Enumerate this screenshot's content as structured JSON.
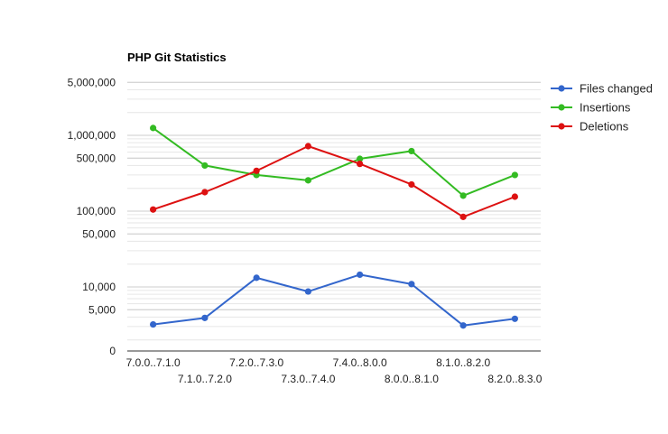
{
  "chart_data": {
    "type": "line",
    "title": "PHP Git Statistics",
    "xlabel": "",
    "ylabel": "",
    "y_scale": "log",
    "y_ticks": [
      {
        "value": 5000000,
        "label": "5,000,000"
      },
      {
        "value": 1000000,
        "label": "1,000,000"
      },
      {
        "value": 500000,
        "label": "500,000"
      },
      {
        "value": 100000,
        "label": "100,000"
      },
      {
        "value": 50000,
        "label": "50,000"
      },
      {
        "value": 10000,
        "label": "10,000"
      },
      {
        "value": 5000,
        "label": "5,000"
      },
      {
        "value": 0,
        "label": "0"
      }
    ],
    "grid": true,
    "legend_position": "right",
    "categories": [
      "7.0.0..7.1.0",
      "7.1.0..7.2.0",
      "7.2.0..7.3.0",
      "7.3.0..7.4.0",
      "7.4.0..8.0.0",
      "8.0.0..8.1.0",
      "8.1.0..8.2.0",
      "8.2.0..8.3.0"
    ],
    "series": [
      {
        "name": "Files changed",
        "color": "#3366cc",
        "values": [
          3200,
          3900,
          13200,
          8700,
          14500,
          10900,
          3100,
          3800
        ]
      },
      {
        "name": "Insertions",
        "color": "#33bb22",
        "values": [
          1250000,
          400000,
          300000,
          255000,
          490000,
          620000,
          160000,
          300000
        ]
      },
      {
        "name": "Deletions",
        "color": "#dd1111",
        "values": [
          105000,
          178000,
          340000,
          720000,
          420000,
          225000,
          84000,
          155000
        ]
      }
    ]
  }
}
